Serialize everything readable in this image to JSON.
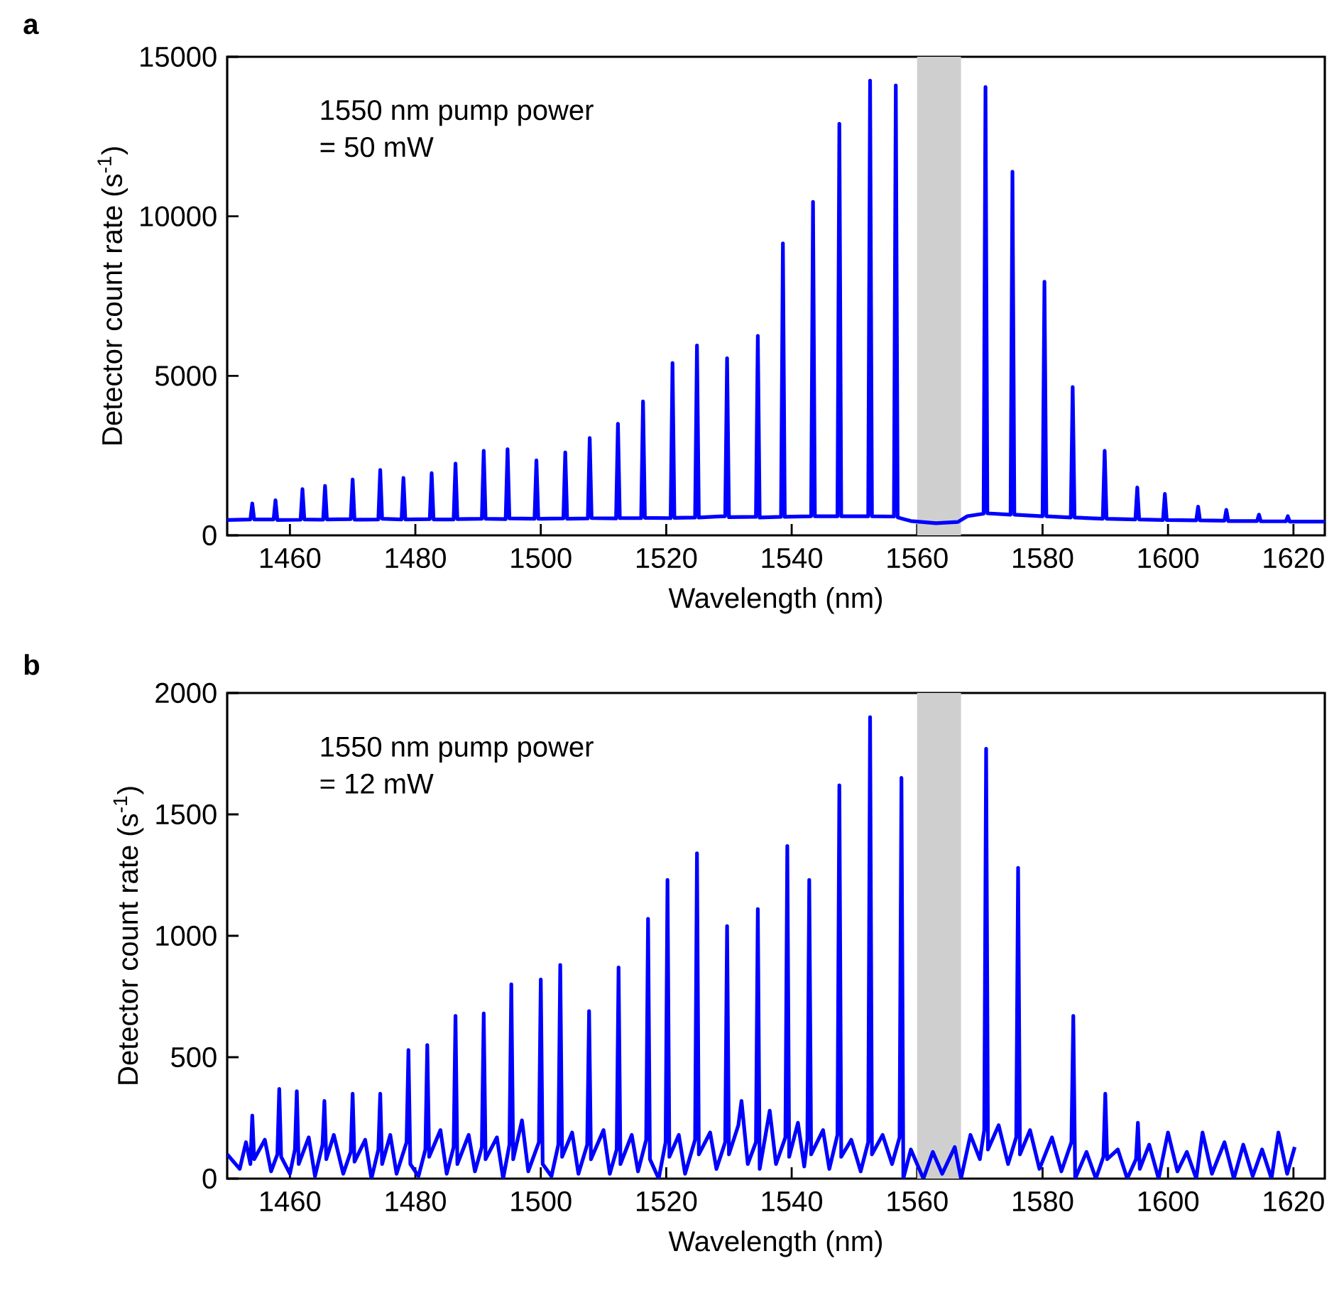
{
  "chart_data": [
    {
      "type": "line",
      "title": "a",
      "xlabel": "Wavelength (nm)",
      "ylabel": "Detector count rate (s$^{-1}$)",
      "annotations": [
        "1550 nm pump power",
        "= 50 mW"
      ],
      "xlim": [
        1450,
        1625
      ],
      "ylim": [
        0,
        15000
      ],
      "xticks": [
        1460,
        1480,
        1500,
        1520,
        1540,
        1560,
        1580,
        1600,
        1620
      ],
      "yticks": [
        0,
        5000,
        10000,
        15000
      ],
      "grid": false,
      "bands": [
        {
          "axis": "x",
          "from": 1560,
          "to": 1567,
          "color": "#cfcfcf"
        }
      ],
      "series": [
        {
          "color": "#0000ff",
          "x": [
            1450,
            1453.7,
            1454.0,
            1454.3,
            1457.4,
            1457.7,
            1458.0,
            1461.7,
            1462.0,
            1462.3,
            1465.3,
            1465.6,
            1465.9,
            1469.7,
            1470.0,
            1470.3,
            1474.1,
            1474.4,
            1474.7,
            1477.8,
            1478.1,
            1478.4,
            1482.3,
            1482.6,
            1482.9,
            1486.1,
            1486.4,
            1486.7,
            1490.6,
            1490.9,
            1491.2,
            1494.4,
            1494.7,
            1495.0,
            1499.0,
            1499.3,
            1499.6,
            1503.6,
            1503.9,
            1504.2,
            1507.5,
            1507.8,
            1508.1,
            1512.0,
            1512.3,
            1512.6,
            1516.0,
            1516.3,
            1516.6,
            1520.7,
            1521.0,
            1521.3,
            1524.6,
            1524.9,
            1525.2,
            1529.4,
            1529.7,
            1530.0,
            1534.3,
            1534.6,
            1534.9,
            1538.3,
            1538.6,
            1538.9,
            1543.1,
            1543.4,
            1543.7,
            1547.3,
            1547.6,
            1547.9,
            1552.2,
            1552.5,
            1552.8,
            1556.3,
            1556.6,
            1556.9,
            1559,
            1563,
            1566.5,
            1568,
            1570.6,
            1570.9,
            1571.2,
            1574.9,
            1575.2,
            1575.5,
            1580.0,
            1580.3,
            1580.6,
            1584.5,
            1584.8,
            1585.1,
            1589.6,
            1589.9,
            1590.2,
            1594.8,
            1595.1,
            1595.4,
            1599.2,
            1599.5,
            1599.8,
            1604.5,
            1604.8,
            1605.1,
            1609.0,
            1609.3,
            1609.6,
            1614.2,
            1614.5,
            1614.8,
            1618.8,
            1619.1,
            1619.4,
            1625
          ],
          "values": [
            480,
            500,
            1000,
            500,
            500,
            1100,
            480,
            490,
            1450,
            500,
            490,
            1550,
            500,
            510,
            1750,
            490,
            500,
            2050,
            520,
            500,
            1800,
            500,
            510,
            1950,
            500,
            500,
            2250,
            510,
            520,
            2650,
            520,
            510,
            2700,
            530,
            520,
            2350,
            520,
            530,
            2600,
            520,
            530,
            3050,
            540,
            530,
            3500,
            540,
            540,
            4200,
            550,
            540,
            5400,
            550,
            560,
            5950,
            560,
            600,
            5550,
            570,
            580,
            6250,
            560,
            580,
            9150,
            580,
            600,
            10450,
            600,
            600,
            12900,
            600,
            600,
            14250,
            600,
            590,
            14100,
            560,
            450,
            380,
            420,
            600,
            680,
            14050,
            690,
            650,
            11400,
            650,
            600,
            7950,
            600,
            560,
            4650,
            560,
            520,
            2650,
            520,
            500,
            1500,
            500,
            480,
            1300,
            480,
            470,
            900,
            470,
            460,
            800,
            450,
            450,
            650,
            440,
            440,
            600,
            430,
            430
          ]
        }
      ]
    },
    {
      "type": "line",
      "title": "b",
      "xlabel": "Wavelength (nm)",
      "ylabel": "Detector count rate (s$^{-1}$)",
      "annotations": [
        "1550 nm pump power",
        "= 12 mW"
      ],
      "xlim": [
        1450,
        1625
      ],
      "ylim": [
        0,
        2000
      ],
      "xticks": [
        1460,
        1480,
        1500,
        1520,
        1540,
        1560,
        1580,
        1600,
        1620
      ],
      "yticks": [
        0,
        500,
        1000,
        1500,
        2000
      ],
      "grid": false,
      "bands": [
        {
          "axis": "x",
          "from": 1560,
          "to": 1567,
          "color": "#cfcfcf"
        }
      ],
      "series": [
        {
          "color": "#0000ff",
          "x": [
            1450,
            1452,
            1453,
            1453.7,
            1454.0,
            1454.3,
            1456,
            1457,
            1458.0,
            1458.3,
            1458.6,
            1460,
            1460.8,
            1461.1,
            1461.4,
            1463,
            1464,
            1465.2,
            1465.5,
            1465.8,
            1467,
            1468.5,
            1469.7,
            1470.0,
            1470.3,
            1472,
            1473,
            1474.1,
            1474.4,
            1474.7,
            1476,
            1477,
            1478.6,
            1478.9,
            1479.2,
            1480.5,
            1481.6,
            1481.9,
            1482.2,
            1484,
            1485,
            1486.1,
            1486.4,
            1486.7,
            1488.5,
            1489.5,
            1490.6,
            1490.9,
            1491.2,
            1493,
            1494,
            1495.0,
            1495.3,
            1495.6,
            1497,
            1498,
            1499.7,
            1500.0,
            1500.3,
            1501.7,
            1502.8,
            1503.1,
            1503.4,
            1505,
            1506,
            1507.4,
            1507.7,
            1508.0,
            1510,
            1511,
            1512.1,
            1512.4,
            1512.7,
            1514.5,
            1515.5,
            1516.8,
            1517.1,
            1517.4,
            1518.8,
            1519.9,
            1520.2,
            1520.5,
            1522,
            1523,
            1524.6,
            1524.9,
            1525.2,
            1527,
            1528,
            1529.4,
            1529.7,
            1530.0,
            1531.5,
            1532,
            1533,
            1534.3,
            1534.6,
            1534.9,
            1536.5,
            1537.5,
            1539.0,
            1539.3,
            1539.6,
            1541,
            1542,
            1542.5,
            1542.8,
            1543.1,
            1545,
            1546,
            1547.3,
            1547.6,
            1547.9,
            1549.5,
            1551,
            1552.2,
            1552.5,
            1552.8,
            1554.5,
            1556,
            1557.2,
            1557.5,
            1557.8,
            1559,
            1561,
            1562.5,
            1564,
            1566,
            1567,
            1568.5,
            1570,
            1570.7,
            1571.0,
            1571.3,
            1573,
            1574.5,
            1575.8,
            1576.1,
            1576.4,
            1578,
            1579.5,
            1581.5,
            1583,
            1584.6,
            1584.9,
            1585.2,
            1587,
            1588.5,
            1589.7,
            1590.0,
            1590.3,
            1592,
            1593.5,
            1594.9,
            1595.2,
            1595.5,
            1597,
            1598.5,
            1600,
            1601.5,
            1603,
            1604.5,
            1605.5,
            1607,
            1609,
            1610.5,
            1612,
            1613.5,
            1615,
            1616.5,
            1617.6,
            1619,
            1620.2
          ],
          "values": [
            100,
            40,
            150,
            60,
            260,
            80,
            160,
            30,
            100,
            370,
            90,
            20,
            120,
            360,
            60,
            170,
            10,
            140,
            320,
            80,
            180,
            20,
            110,
            350,
            70,
            160,
            0,
            120,
            350,
            60,
            180,
            20,
            150,
            530,
            60,
            10,
            120,
            550,
            90,
            200,
            20,
            130,
            670,
            60,
            180,
            30,
            130,
            680,
            80,
            170,
            0,
            140,
            800,
            80,
            240,
            30,
            150,
            820,
            60,
            10,
            140,
            880,
            90,
            190,
            20,
            140,
            690,
            80,
            200,
            20,
            120,
            870,
            60,
            180,
            30,
            160,
            1070,
            80,
            0,
            150,
            1230,
            90,
            180,
            20,
            160,
            1340,
            100,
            190,
            40,
            150,
            1040,
            100,
            220,
            320,
            60,
            150,
            1110,
            40,
            280,
            60,
            170,
            1370,
            90,
            230,
            50,
            160,
            1230,
            100,
            200,
            40,
            180,
            1620,
            90,
            160,
            30,
            150,
            1900,
            100,
            180,
            60,
            170,
            1650,
            0,
            120,
            0,
            110,
            20,
            130,
            0,
            180,
            80,
            200,
            1770,
            120,
            220,
            60,
            170,
            1280,
            100,
            200,
            40,
            170,
            30,
            150,
            670,
            0,
            110,
            0,
            90,
            350,
            80,
            120,
            0,
            80,
            230,
            40,
            140,
            0,
            190,
            30,
            110,
            0,
            190,
            20,
            150,
            0,
            140,
            10,
            120,
            0,
            190,
            20,
            130
          ]
        }
      ]
    }
  ]
}
